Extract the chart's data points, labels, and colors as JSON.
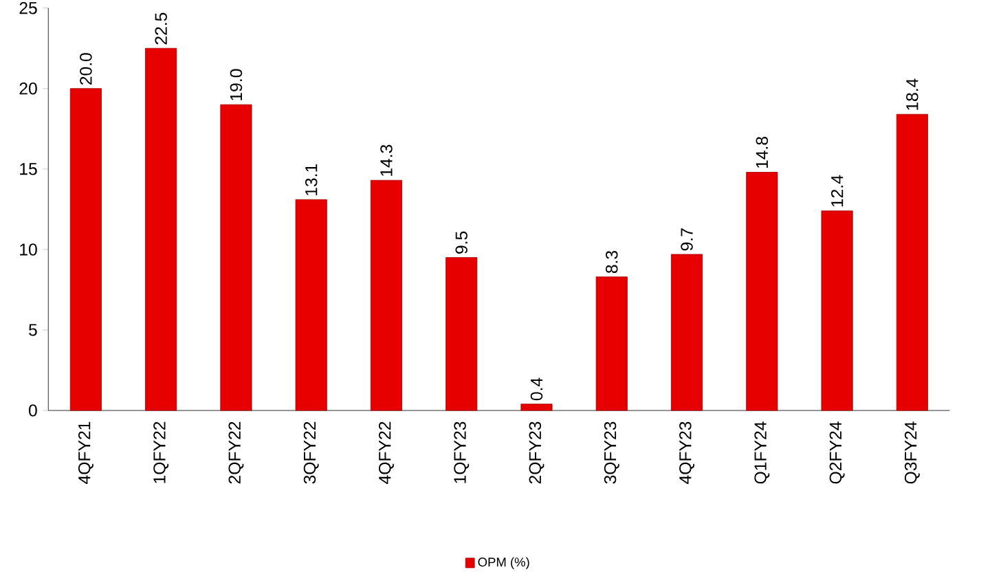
{
  "chart_data": {
    "type": "bar",
    "categories": [
      "4QFY21",
      "1QFY22",
      "2QFY22",
      "3QFY22",
      "4QFY22",
      "1QFY23",
      "2QFY23",
      "3QFY23",
      "4QFY23",
      "Q1FY24",
      "Q2FY24",
      "Q3FY24"
    ],
    "series": [
      {
        "name": "OPM (%)",
        "color": "#e60000",
        "values": [
          20.0,
          22.5,
          19.0,
          13.1,
          14.3,
          9.5,
          0.4,
          8.3,
          9.7,
          14.8,
          12.4,
          18.4
        ],
        "value_labels": [
          "20.0",
          "22.5",
          "19.0",
          "13.1",
          "14.3",
          "9.5",
          "0.4",
          "8.3",
          "9.7",
          "14.8",
          "12.4",
          "18.4"
        ]
      }
    ],
    "ylim": [
      0,
      25
    ],
    "yticks": [
      0,
      5,
      10,
      15,
      20,
      25
    ],
    "grid": false,
    "legend": "bottom"
  }
}
